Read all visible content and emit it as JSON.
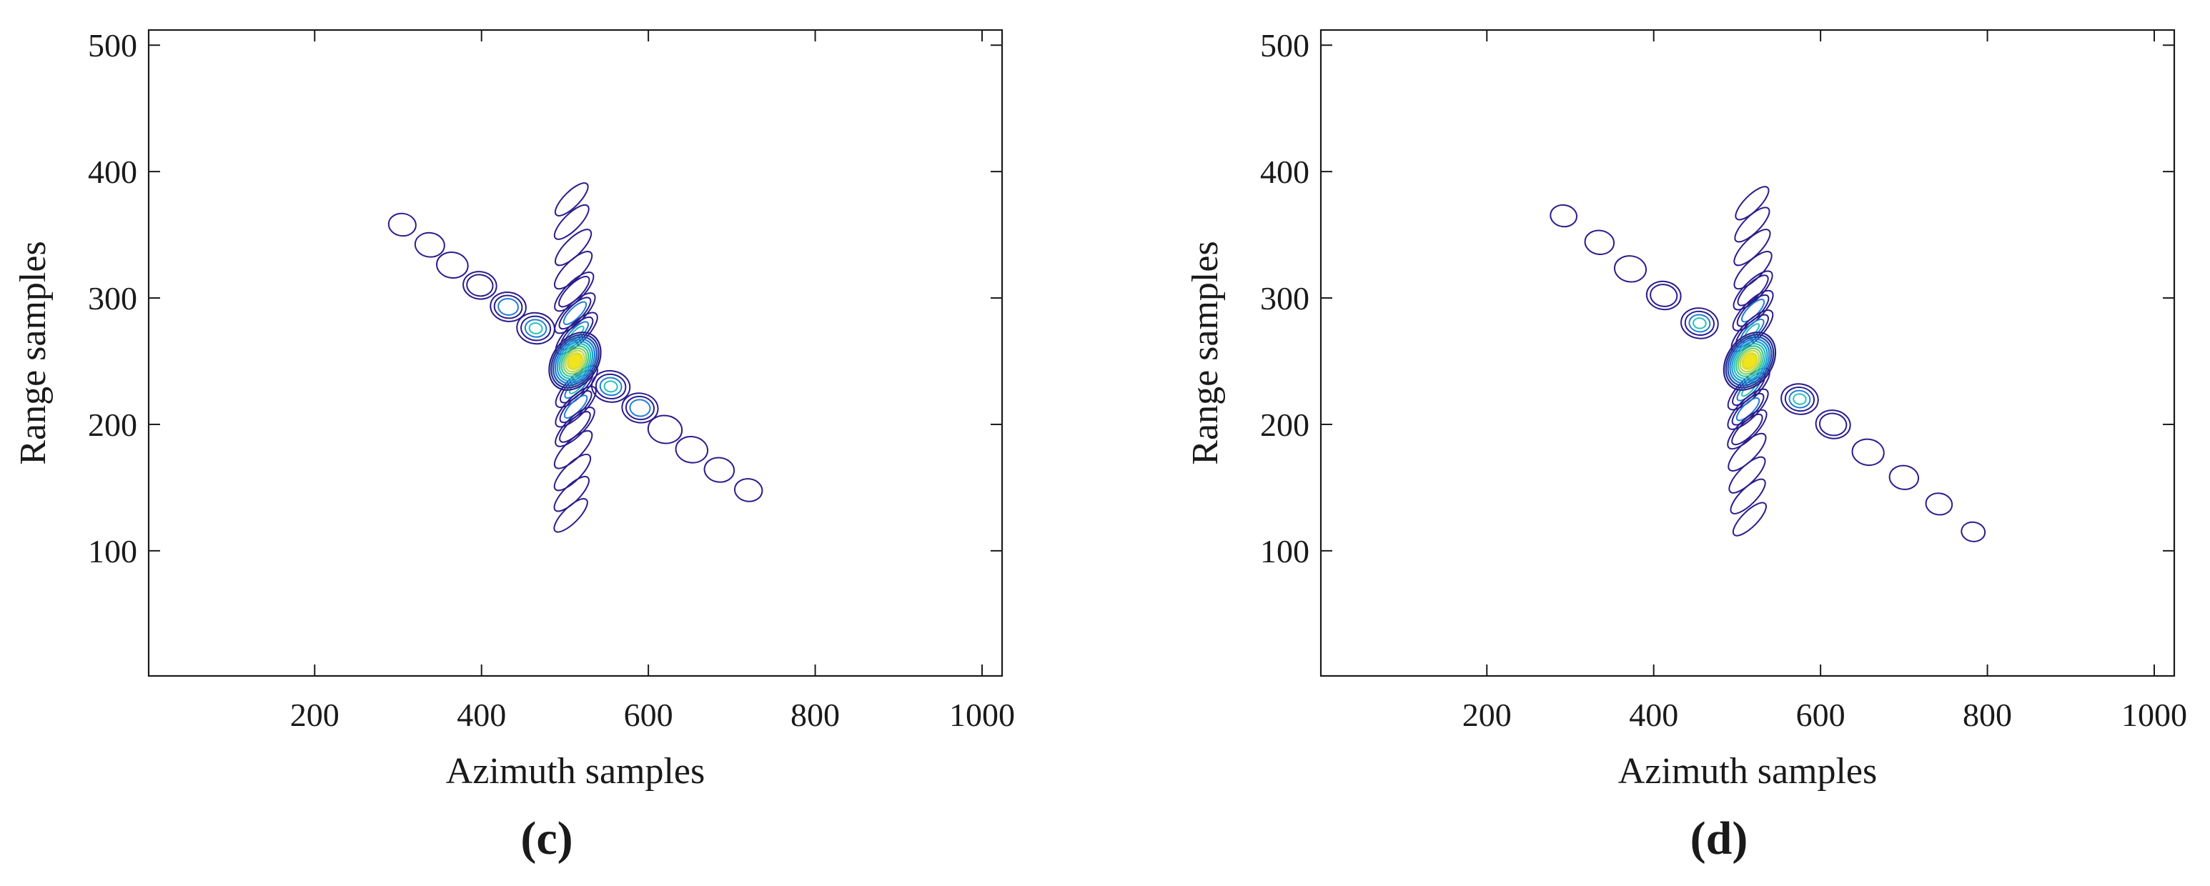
{
  "colors": {
    "axis": "#1a1a1a",
    "contour_outer": "#2b1d8c",
    "contour_mid": "#1f7fd4",
    "contour_inner": "#27c2b4",
    "peak": "#f2e41c"
  },
  "chart_data": [
    {
      "type": "contour",
      "panel_label": "(c)",
      "xlabel": "Azimuth samples",
      "ylabel": "Range samples",
      "xlim": [
        1,
        1024
      ],
      "ylim": [
        1,
        512
      ],
      "xticks": [
        200,
        400,
        600,
        800,
        1000
      ],
      "yticks": [
        100,
        200,
        300,
        400,
        500
      ],
      "grid": false,
      "peak": {
        "x": 512,
        "y": 250
      },
      "sidelobe_axes": [
        {
          "name": "",
          "from": {
            "x": 305,
            "y": 358
          },
          "to": {
            "x": 720,
            "y": 148
          }
        },
        {
          "name": "",
          "from": {
            "x": 505,
            "y": 380
          },
          "to": {
            "x": 515,
            "y": 128
          }
        }
      ],
      "sidelobes": [
        {
          "x": 305,
          "y": 358,
          "levels": 1
        },
        {
          "x": 338,
          "y": 342,
          "levels": 1
        },
        {
          "x": 365,
          "y": 326,
          "levels": 1
        },
        {
          "x": 398,
          "y": 310,
          "levels": 2
        },
        {
          "x": 432,
          "y": 293,
          "levels": 3
        },
        {
          "x": 465,
          "y": 276,
          "levels": 4
        },
        {
          "x": 555,
          "y": 230,
          "levels": 4
        },
        {
          "x": 590,
          "y": 213,
          "levels": 3
        },
        {
          "x": 620,
          "y": 196,
          "levels": 1
        },
        {
          "x": 652,
          "y": 180,
          "levels": 1
        },
        {
          "x": 685,
          "y": 164,
          "levels": 1
        },
        {
          "x": 720,
          "y": 148,
          "levels": 1
        },
        {
          "x": 508,
          "y": 378,
          "levels": 1
        },
        {
          "x": 508,
          "y": 360,
          "levels": 1
        },
        {
          "x": 510,
          "y": 340,
          "levels": 1
        },
        {
          "x": 510,
          "y": 322,
          "levels": 1
        },
        {
          "x": 511,
          "y": 305,
          "levels": 2
        },
        {
          "x": 512,
          "y": 288,
          "levels": 3
        },
        {
          "x": 514,
          "y": 272,
          "levels": 4
        },
        {
          "x": 514,
          "y": 230,
          "levels": 4
        },
        {
          "x": 513,
          "y": 214,
          "levels": 3
        },
        {
          "x": 512,
          "y": 198,
          "levels": 2
        },
        {
          "x": 510,
          "y": 180,
          "levels": 1
        },
        {
          "x": 509,
          "y": 162,
          "levels": 1
        },
        {
          "x": 508,
          "y": 145,
          "levels": 1
        },
        {
          "x": 507,
          "y": 128,
          "levels": 1
        }
      ]
    },
    {
      "type": "contour",
      "panel_label": "(d)",
      "xlabel": "Azimuth samples",
      "ylabel": "Range samples",
      "xlim": [
        1,
        1024
      ],
      "ylim": [
        1,
        512
      ],
      "xticks": [
        200,
        400,
        600,
        800,
        1000
      ],
      "yticks": [
        100,
        200,
        300,
        400,
        500
      ],
      "grid": false,
      "peak": {
        "x": 515,
        "y": 250
      },
      "sidelobe_axes": [
        {
          "name": "",
          "from": {
            "x": 292,
            "y": 365
          },
          "to": {
            "x": 783,
            "y": 115
          }
        },
        {
          "name": "",
          "from": {
            "x": 518,
            "y": 377
          },
          "to": {
            "x": 515,
            "y": 125
          }
        }
      ],
      "sidelobes": [
        {
          "x": 292,
          "y": 365,
          "levels": 1
        },
        {
          "x": 335,
          "y": 344,
          "levels": 1
        },
        {
          "x": 372,
          "y": 323,
          "levels": 1
        },
        {
          "x": 412,
          "y": 302,
          "levels": 2
        },
        {
          "x": 455,
          "y": 280,
          "levels": 4
        },
        {
          "x": 575,
          "y": 220,
          "levels": 4
        },
        {
          "x": 615,
          "y": 200,
          "levels": 2
        },
        {
          "x": 657,
          "y": 178,
          "levels": 1
        },
        {
          "x": 700,
          "y": 158,
          "levels": 1
        },
        {
          "x": 742,
          "y": 137,
          "levels": 1
        },
        {
          "x": 783,
          "y": 115,
          "levels": 1
        },
        {
          "x": 518,
          "y": 375,
          "levels": 1
        },
        {
          "x": 518,
          "y": 358,
          "levels": 1
        },
        {
          "x": 518,
          "y": 340,
          "levels": 1
        },
        {
          "x": 519,
          "y": 322,
          "levels": 1
        },
        {
          "x": 519,
          "y": 306,
          "levels": 2
        },
        {
          "x": 519,
          "y": 290,
          "levels": 3
        },
        {
          "x": 518,
          "y": 274,
          "levels": 4
        },
        {
          "x": 514,
          "y": 228,
          "levels": 4
        },
        {
          "x": 513,
          "y": 212,
          "levels": 3
        },
        {
          "x": 512,
          "y": 196,
          "levels": 2
        },
        {
          "x": 512,
          "y": 178,
          "levels": 1
        },
        {
          "x": 512,
          "y": 160,
          "levels": 1
        },
        {
          "x": 513,
          "y": 143,
          "levels": 1
        },
        {
          "x": 515,
          "y": 125,
          "levels": 1
        }
      ]
    }
  ]
}
